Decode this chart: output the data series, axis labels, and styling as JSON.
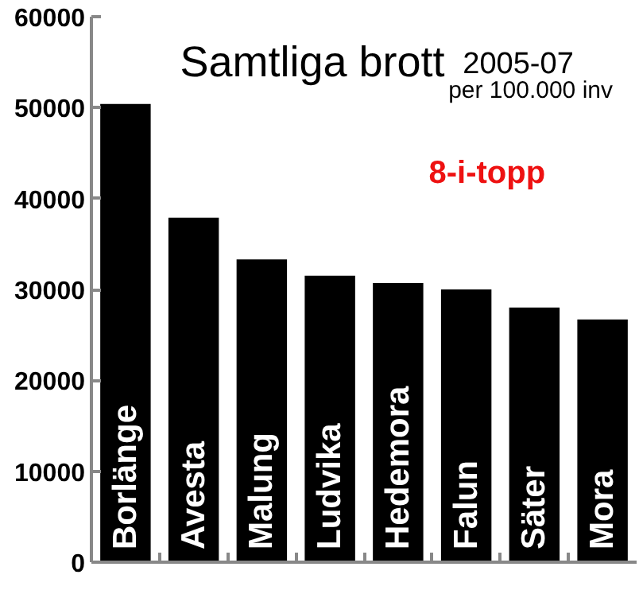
{
  "chart_data": {
    "type": "bar",
    "title": "Samtliga brott",
    "subtitle": "2005-07",
    "annotations": [
      "per 100.000 inv",
      "8-i-topp"
    ],
    "categories": [
      "Borlänge",
      "Avesta",
      "Malung",
      "Ludvika",
      "Hedemora",
      "Falun",
      "Säter",
      "Mora"
    ],
    "values": [
      50400,
      37900,
      33300,
      31500,
      30700,
      30000,
      28000,
      26700
    ],
    "color": "#000000",
    "ylim": [
      0,
      60000
    ],
    "yticks": [
      0,
      10000,
      20000,
      30000,
      40000,
      50000,
      60000
    ],
    "grid": false,
    "tick_labels": "y"
  }
}
